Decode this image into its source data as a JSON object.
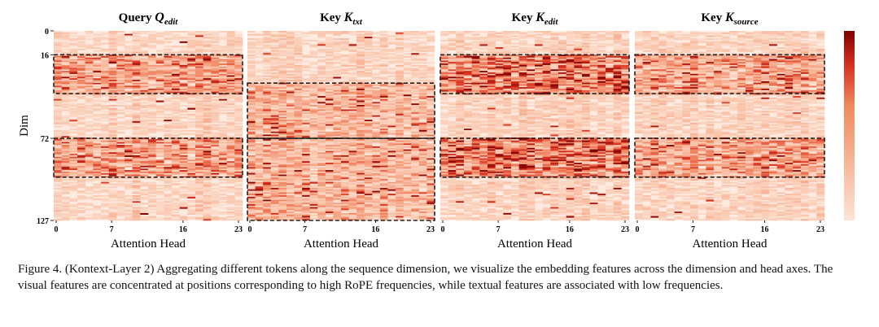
{
  "figure": {
    "panels": [
      {
        "title": "Query",
        "symbol": "Q",
        "subscript": "edit"
      },
      {
        "title": "Key",
        "symbol": "K",
        "subscript": "txt"
      },
      {
        "title": "Key",
        "symbol": "K",
        "subscript": "edit"
      },
      {
        "title": "Key",
        "symbol": "K",
        "subscript": "source"
      }
    ],
    "y_axis_label": "Dim",
    "x_axis_label": "Attention Head",
    "y_ticks": [
      "0",
      "16",
      "72",
      "127"
    ],
    "x_ticks": [
      "0",
      "7",
      "16",
      "23"
    ],
    "colormap": [
      "#fde4d6",
      "#d7301f",
      "#7f0000"
    ]
  },
  "chart_data": [
    {
      "type": "heatmap",
      "title": "Query Q_edit",
      "xlabel": "Attention Head",
      "ylabel": "Dim",
      "x_range": [
        0,
        23
      ],
      "y_range": [
        0,
        127
      ],
      "highlight_regions_dim": [
        [
          16,
          42
        ],
        [
          72,
          98
        ]
      ]
    },
    {
      "type": "heatmap",
      "title": "Key K_txt",
      "xlabel": "Attention Head",
      "ylabel": "Dim",
      "x_range": [
        0,
        23
      ],
      "y_range": [
        0,
        127
      ],
      "highlight_regions_dim": [
        [
          35,
          72
        ],
        [
          72,
          127
        ]
      ]
    },
    {
      "type": "heatmap",
      "title": "Key K_edit",
      "xlabel": "Attention Head",
      "ylabel": "Dim",
      "x_range": [
        0,
        23
      ],
      "y_range": [
        0,
        127
      ],
      "highlight_regions_dim": [
        [
          16,
          42
        ],
        [
          72,
          98
        ]
      ]
    },
    {
      "type": "heatmap",
      "title": "Key K_source",
      "xlabel": "Attention Head",
      "ylabel": "Dim",
      "x_range": [
        0,
        23
      ],
      "y_range": [
        0,
        127
      ],
      "highlight_regions_dim": [
        [
          16,
          42
        ],
        [
          72,
          98
        ]
      ]
    }
  ],
  "caption": {
    "label": "Figure 4.",
    "text": " (Kontext-Layer 2) Aggregating different tokens along the sequence dimension, we visualize the embedding features across the dimension and head axes. The visual features are concentrated at positions corresponding to high RoPE frequencies, while textual features are associated with low frequencies."
  }
}
